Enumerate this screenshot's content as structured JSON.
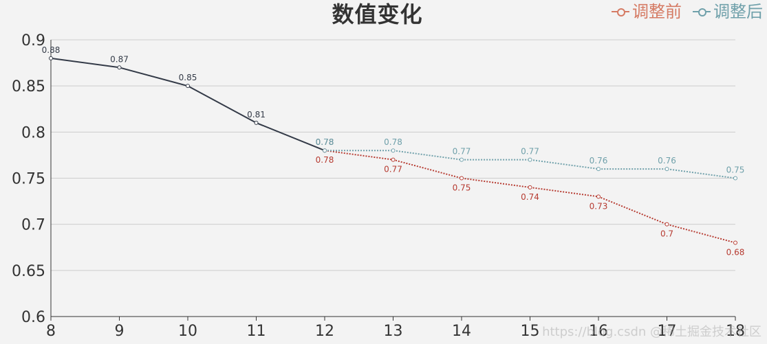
{
  "title": "数值变化",
  "legend": {
    "items": [
      {
        "name": "调整前",
        "color": "#d57a63"
      },
      {
        "name": "调整后",
        "color": "#6fa0aa"
      }
    ],
    "placement": "top-right"
  },
  "watermark": "https://blog.csdn @稀土掘金技术社区",
  "chart_data": {
    "type": "line",
    "title": "数值变化",
    "xlabel": "",
    "ylabel": "",
    "x": [
      8,
      9,
      10,
      11,
      12,
      13,
      14,
      15,
      16,
      17,
      18
    ],
    "xlim": [
      8,
      18
    ],
    "ylim": [
      0.6,
      0.9
    ],
    "yticks": [
      0.6,
      0.65,
      0.7,
      0.75,
      0.8,
      0.85,
      0.9
    ],
    "grid": true,
    "legend_placement": "top-right",
    "series": [
      {
        "id": "baseline",
        "style": "solid",
        "color": "#333a47",
        "x": [
          8,
          9,
          10,
          11,
          12
        ],
        "values": [
          0.88,
          0.87,
          0.85,
          0.81,
          0.78
        ],
        "labels": [
          "0.88",
          "0.87",
          "0.85",
          "0.81",
          "0.78"
        ],
        "label_position": "above"
      },
      {
        "id": "before",
        "name": "调整前",
        "style": "dotted",
        "color": "#b63a30",
        "x": [
          12,
          13,
          14,
          15,
          16,
          17,
          18
        ],
        "values": [
          0.78,
          0.77,
          0.75,
          0.74,
          0.73,
          0.7,
          0.68
        ],
        "labels": [
          "0.78",
          "0.77",
          "0.75",
          "0.74",
          "0.73",
          "0.7",
          "0.68"
        ],
        "label_position": "below"
      },
      {
        "id": "after",
        "name": "调整后",
        "style": "dotted",
        "color": "#6fa0aa",
        "x": [
          12,
          13,
          14,
          15,
          16,
          17,
          18
        ],
        "values": [
          0.78,
          0.78,
          0.77,
          0.77,
          0.76,
          0.76,
          0.75
        ],
        "labels": [
          "0.78",
          "0.78",
          "0.77",
          "0.77",
          "0.76",
          "0.76",
          "0.75"
        ],
        "label_position": "above"
      }
    ]
  }
}
